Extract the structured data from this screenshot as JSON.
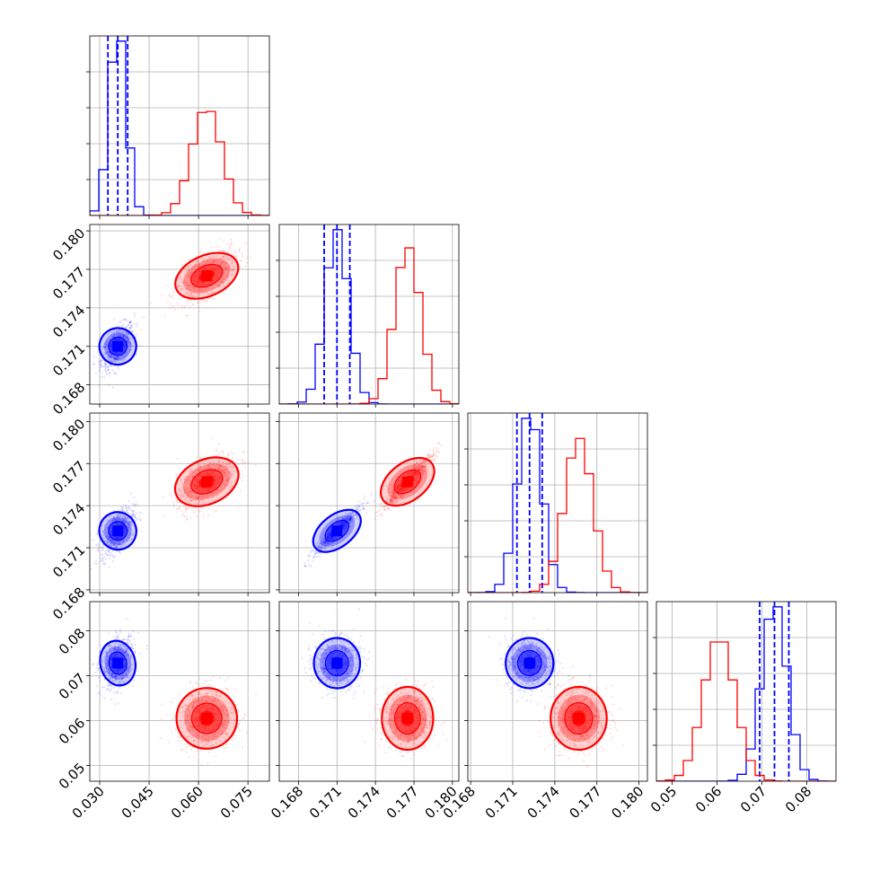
{
  "chart_data": {
    "type": "corner",
    "title": "",
    "grid": true,
    "parameters": [
      {
        "ticks": [
          "0.030",
          "0.045",
          "0.060",
          "0.075"
        ],
        "tick_values": [
          0.03,
          0.045,
          0.06,
          0.075
        ],
        "range": [
          0.027,
          0.0815
        ]
      },
      {
        "ticks": [
          "0.168",
          "0.171",
          "0.174",
          "0.177",
          "0.180"
        ],
        "tick_values": [
          0.168,
          0.171,
          0.174,
          0.177,
          0.18
        ],
        "range": [
          0.1665,
          0.1805
        ]
      },
      {
        "ticks": [
          "0.168",
          "0.171",
          "0.174",
          "0.177",
          "0.180"
        ],
        "tick_values": [
          0.168,
          0.171,
          0.174,
          0.177,
          0.18
        ],
        "range": [
          0.1678,
          0.1806
        ]
      },
      {
        "ticks": [
          "0.05",
          "0.06",
          "0.07",
          "0.08"
        ],
        "tick_values": [
          0.05,
          0.06,
          0.07,
          0.08
        ],
        "range": [
          0.0465,
          0.0865
        ]
      }
    ],
    "series": [
      {
        "color": "#0000ff",
        "mean": [
          0.0355,
          0.171,
          0.1722,
          0.0728
        ],
        "sd": [
          0.0025,
          0.0009,
          0.00085,
          0.0028
        ],
        "corr": {
          "0-1": 0.6,
          "0-2": 0.6,
          "1-2": 0.95,
          "0-3": 0.3,
          "1-3": 0.0,
          "2-3": 0.0
        },
        "quantiles": [
          [
            0.0325,
            0.0355,
            0.0385
          ],
          [
            0.17,
            0.171,
            0.172
          ],
          [
            0.1713,
            0.1722,
            0.1731
          ],
          [
            0.0695,
            0.0728,
            0.076
          ]
        ]
      },
      {
        "color": "#ff0000",
        "mean": [
          0.0625,
          0.1765,
          0.1757,
          0.0605
        ],
        "sd": [
          0.0045,
          0.001,
          0.001,
          0.0035
        ],
        "corr": {
          "0-1": 0.6,
          "0-2": 0.6,
          "1-2": 0.95,
          "0-3": 0.1,
          "1-3": 0.0,
          "2-3": 0.0
        },
        "quantiles": null
      }
    ]
  }
}
